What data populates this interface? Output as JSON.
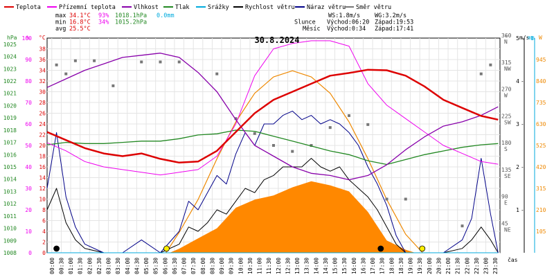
{
  "chart_data": {
    "type": "line",
    "title": "30.8.2024",
    "time_axis_label": "čas",
    "legend": [
      {
        "label": "Teplota",
        "color": "#dd0000"
      },
      {
        "label": "Přízemní teplota",
        "color": "#ee00ee"
      },
      {
        "label": "Vlhkost",
        "color": "#8800aa"
      },
      {
        "label": "Tlak",
        "color": "#228822"
      },
      {
        "label": "Srážky",
        "color": "#00aadd"
      },
      {
        "label": "Rychlost větru",
        "color": "#000000"
      },
      {
        "label": "Náraz větru",
        "color": "#000088"
      },
      {
        "label": "Směr větru",
        "color": "#777777"
      }
    ],
    "stats": [
      {
        "label": "max",
        "temp": "34.1°C",
        "hum": "93%",
        "press": "1018.1hPa",
        "rain": "0.0mm"
      },
      {
        "label": "min",
        "temp": "16.8°C",
        "hum": "34%",
        "press": "1015.2hPa",
        "rain": ""
      },
      {
        "label": "avg",
        "temp": "25.5°C",
        "hum": "",
        "press": "",
        "rain": ""
      }
    ],
    "wind_sun_moon": {
      "ws": "WS:1.8m/s",
      "wg": "WG:3.2m/s",
      "sun_label": "Slunce",
      "sun_rise": "Východ:06:20",
      "sun_set": "Západ:19:53",
      "moon_label": "Měsíc",
      "moon_rise": "Východ:0:34",
      "moon_set": "Západ:17:41"
    },
    "axes": {
      "hpa": {
        "title": "hPa",
        "ticks": [
          "1008",
          "1009",
          "1010",
          "1011",
          "1012",
          "1013",
          "1014",
          "1015",
          "1016",
          "1017",
          "1018",
          "1019",
          "1020",
          "1021",
          "1022",
          "1023",
          "1024",
          "1025"
        ],
        "range": [
          1008,
          1025.5
        ]
      },
      "percent": {
        "title": "%",
        "ticks": [
          "0",
          "10",
          "20",
          "30",
          "40",
          "50",
          "60",
          "70",
          "80",
          "90",
          "100"
        ],
        "range": [
          0,
          100
        ]
      },
      "celsius": {
        "title": "°C",
        "ticks": [
          "0",
          "2",
          "4",
          "6",
          "8",
          "10",
          "12",
          "14",
          "16",
          "18",
          "20",
          "22",
          "24",
          "26",
          "28",
          "30",
          "32",
          "34",
          "36",
          "38"
        ],
        "range": [
          0,
          40
        ]
      },
      "direction": {
        "title": "°",
        "ticks": [
          {
            "v": 45,
            "n": "45",
            "c": "NE"
          },
          {
            "v": 90,
            "n": "90",
            "c": "E"
          },
          {
            "v": 135,
            "n": "135",
            "c": "SE"
          },
          {
            "v": 180,
            "n": "180",
            "c": "S"
          },
          {
            "v": 225,
            "n": "225",
            "c": "SW"
          },
          {
            "v": 270,
            "n": "270",
            "c": "W"
          },
          {
            "v": 315,
            "n": "315",
            "c": "NW"
          },
          {
            "v": 360,
            "n": "360",
            "c": "N"
          }
        ],
        "range": [
          0,
          360
        ]
      },
      "wind_ms": {
        "title": "m/s",
        "ticks": [
          "1",
          "2",
          "3",
          "4",
          "5"
        ],
        "range": [
          0,
          5
        ]
      },
      "rain_mm": {
        "title": "mm",
        "ticks": [
          "1"
        ],
        "range": [
          0,
          1
        ]
      },
      "solar_w": {
        "title": "W",
        "ticks": [
          "105",
          "210",
          "315",
          "420",
          "525",
          "630",
          "735",
          "840",
          "945"
        ],
        "range": [
          0,
          1050
        ]
      }
    },
    "time_ticks": [
      "00:00",
      "00:30",
      "01:00",
      "01:30",
      "02:00",
      "02:30",
      "03:00",
      "03:30",
      "04:00",
      "04:30",
      "05:00",
      "05:30",
      "06:00",
      "06:30",
      "07:00",
      "07:30",
      "08:00",
      "08:30",
      "09:00",
      "09:30",
      "10:00",
      "10:30",
      "11:00",
      "11:30",
      "12:00",
      "12:30",
      "13:00",
      "13:30",
      "14:00",
      "14:30",
      "15:00",
      "15:30",
      "16:00",
      "16:30",
      "17:00",
      "17:30",
      "18:00",
      "18:30",
      "19:00",
      "19:30",
      "20:00",
      "20:30",
      "21:00",
      "21:30",
      "22:00",
      "22:30",
      "23:00",
      "23:30"
    ],
    "series": [
      {
        "name": "Teplota",
        "unit": "°C",
        "color": "#dd0000",
        "x": [
          0,
          1,
          2,
          3,
          4,
          5,
          6,
          7,
          8,
          9,
          10,
          11,
          12,
          13,
          14,
          15,
          16,
          17,
          18,
          19,
          20,
          21,
          22,
          23,
          23.9
        ],
        "y": [
          22.5,
          21,
          19.5,
          18.5,
          18,
          18.5,
          17.5,
          16.8,
          17,
          19,
          22.5,
          26,
          28.5,
          30,
          31.5,
          33,
          33.5,
          34.1,
          34,
          33,
          31,
          28.5,
          27,
          25.5,
          24.8
        ]
      },
      {
        "name": "Přízemní teplota",
        "unit": "°C",
        "color": "#ee00ee",
        "x": [
          0,
          1,
          2,
          3,
          4,
          5,
          6,
          7,
          8,
          9,
          10,
          11,
          12,
          13,
          14,
          15,
          16,
          17,
          18,
          19,
          20,
          21,
          22,
          23,
          23.9
        ],
        "y": [
          20.5,
          19,
          17,
          16,
          15.5,
          15,
          14.5,
          15,
          15.5,
          18,
          24,
          33,
          38,
          39,
          39.5,
          39.5,
          38.5,
          31.5,
          27.5,
          25,
          22.5,
          20,
          18.5,
          17,
          16.5
        ]
      },
      {
        "name": "Vlhkost",
        "unit": "%",
        "color": "#8800aa",
        "x": [
          0,
          1,
          2,
          3,
          4,
          5,
          6,
          7,
          8,
          9,
          10,
          11,
          12,
          13,
          14,
          15,
          16,
          17,
          18,
          19,
          20,
          21,
          22,
          23,
          23.9
        ],
        "y": [
          77,
          81,
          85,
          88,
          91,
          92,
          93,
          91,
          84,
          75,
          62,
          50,
          45,
          40,
          37,
          36,
          34,
          36,
          41,
          48,
          54,
          59,
          61,
          64,
          68
        ]
      },
      {
        "name": "Tlak",
        "unit": "hPa",
        "color": "#228822",
        "x": [
          0,
          1,
          2,
          3,
          4,
          5,
          6,
          7,
          8,
          9,
          10,
          11,
          12,
          13,
          14,
          15,
          16,
          17,
          18,
          19,
          20,
          21,
          22,
          23,
          23.9
        ],
        "y": [
          1016.8,
          1017,
          1016.9,
          1016.9,
          1017.0,
          1017.1,
          1017.1,
          1017.3,
          1017.6,
          1017.7,
          1018.0,
          1017.9,
          1017.5,
          1017.1,
          1016.7,
          1016.3,
          1016.0,
          1015.5,
          1015.2,
          1015.6,
          1016.0,
          1016.3,
          1016.6,
          1016.8,
          1016.9
        ]
      },
      {
        "name": "Rychlost větru",
        "unit": "m/s",
        "color": "#000000",
        "x": [
          0,
          0.5,
          1,
          1.5,
          2,
          3,
          4,
          5,
          6,
          7,
          7.5,
          8,
          8.5,
          9,
          9.5,
          10,
          10.5,
          11,
          11.5,
          12,
          12.5,
          13,
          13.5,
          14,
          14.5,
          15,
          15.5,
          16,
          16.5,
          17,
          17.5,
          18,
          18.5,
          19,
          20,
          21,
          22,
          22.5,
          23,
          23.5,
          23.9
        ],
        "y": [
          1.0,
          1.5,
          0.7,
          0.3,
          0.1,
          0,
          0,
          0,
          0,
          0.2,
          0.6,
          0.5,
          0.7,
          1.0,
          0.9,
          1.2,
          1.5,
          1.4,
          1.7,
          1.8,
          2.0,
          2.0,
          2.0,
          2.2,
          2.0,
          1.9,
          2.0,
          1.7,
          1.5,
          1.3,
          1.0,
          0.6,
          0.2,
          0,
          0,
          0,
          0.1,
          0.3,
          0.6,
          0.3,
          0
        ]
      },
      {
        "name": "Náraz větru",
        "unit": "m/s",
        "color": "#000088",
        "x": [
          0,
          0.5,
          1,
          1.5,
          2,
          3,
          4,
          5,
          6,
          7,
          7.5,
          8,
          8.5,
          9,
          9.5,
          10,
          10.5,
          11,
          11.5,
          12,
          12.5,
          13,
          13.5,
          14,
          14.5,
          15,
          15.5,
          16,
          16.5,
          17,
          17.5,
          18,
          18.5,
          19,
          20,
          21,
          22,
          22.5,
          23,
          23.5,
          23.9
        ],
        "y": [
          1.5,
          2.8,
          1.3,
          0.6,
          0.2,
          0,
          0,
          0.3,
          0,
          0.5,
          1.2,
          1.0,
          1.4,
          1.8,
          1.6,
          2.3,
          2.8,
          2.5,
          3.0,
          3.0,
          3.2,
          3.3,
          3.1,
          3.2,
          3.0,
          3.1,
          3.0,
          2.8,
          2.5,
          2.0,
          1.6,
          1.1,
          0.4,
          0,
          0,
          0,
          0.3,
          0.8,
          2.2,
          0.9,
          0
        ]
      },
      {
        "name": "Srážky",
        "unit": "mm",
        "color": "#00aadd",
        "x": [
          0,
          23.9
        ],
        "y": [
          0,
          0
        ]
      },
      {
        "name": "Solar",
        "unit": "W",
        "color": "#ff8800",
        "x": [
          6.5,
          7,
          8,
          9,
          10,
          11,
          12,
          13,
          14,
          15,
          16,
          17,
          18,
          19,
          19.5
        ],
        "y": [
          0,
          20,
          70,
          120,
          220,
          260,
          280,
          320,
          350,
          330,
          300,
          200,
          60,
          15,
          0
        ]
      },
      {
        "name": "Solar clear sky",
        "unit": "W",
        "color": "#ee8800",
        "x": [
          6.3,
          7,
          8,
          9,
          10,
          11,
          12,
          13,
          14,
          15,
          16,
          17,
          18,
          19,
          19.9
        ],
        "y": [
          0,
          100,
          260,
          460,
          640,
          780,
          860,
          890,
          860,
          780,
          640,
          460,
          260,
          90,
          0
        ]
      },
      {
        "name": "Směr větru",
        "unit": "°",
        "color": "#777777",
        "x": [
          0.5,
          1,
          1.5,
          2.5,
          3.5,
          5,
          6,
          7,
          9,
          10,
          11,
          12,
          13,
          14,
          15,
          16,
          17,
          18,
          19,
          22,
          23,
          23.5
        ],
        "y": [
          315,
          300,
          322,
          322,
          280,
          320,
          320,
          320,
          300,
          225,
          200,
          180,
          170,
          180,
          210,
          230,
          215,
          90,
          90,
          45,
          300,
          315
        ]
      }
    ],
    "markers": [
      {
        "kind": "moon",
        "x": 0.5
      },
      {
        "kind": "sun",
        "x": 6.33
      },
      {
        "kind": "moon",
        "x": 17.68
      },
      {
        "kind": "sun",
        "x": 19.88
      }
    ]
  }
}
